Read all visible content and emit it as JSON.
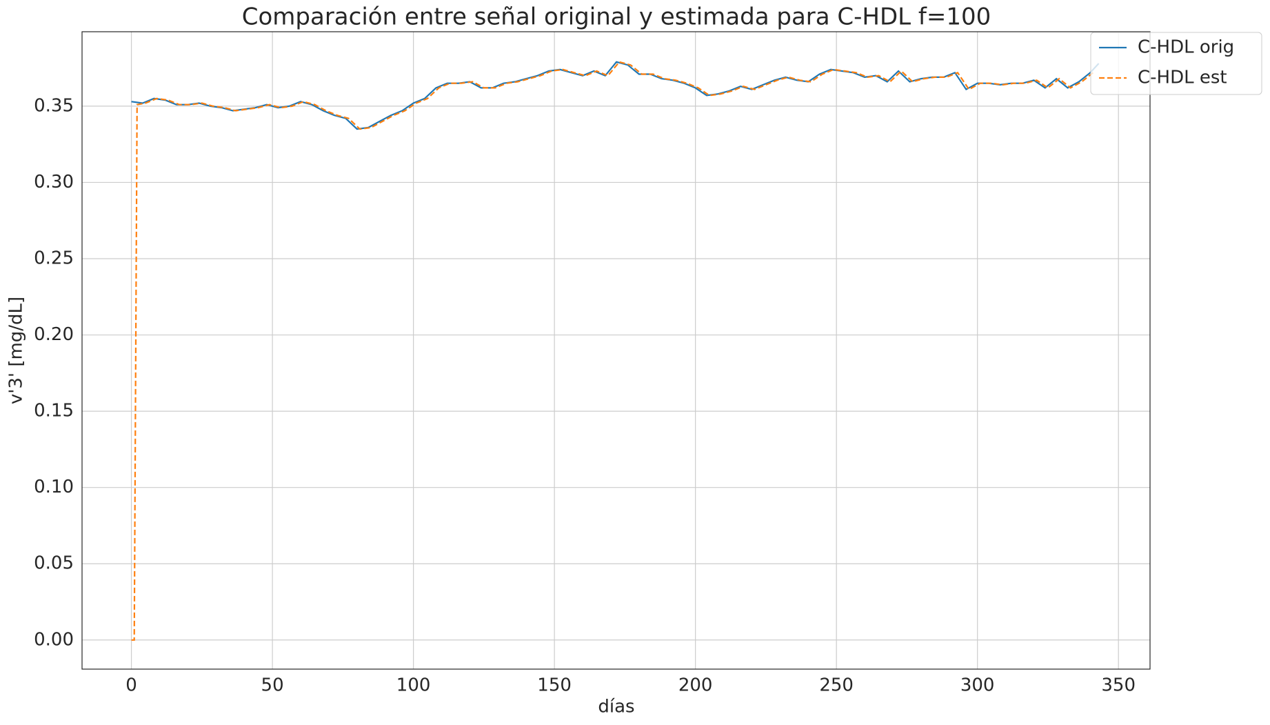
{
  "chart_data": {
    "type": "line",
    "title": "Comparación entre señal original y estimada para C-HDL f=100",
    "xlabel": "días",
    "ylabel": "v'3' [mg/dL]",
    "xlim": [
      -17.5,
      361.2
    ],
    "ylim": [
      -0.0191,
      0.3988
    ],
    "xticks": [
      0,
      50,
      100,
      150,
      200,
      250,
      300,
      350
    ],
    "yticks": [
      {
        "value": 0,
        "label": "0.00"
      },
      0.05,
      {
        "value": 0.1,
        "label": "0.10"
      },
      0.15,
      {
        "value": 0.2,
        "label": "0.20"
      },
      0.25,
      {
        "value": 0.3,
        "label": "0.30"
      },
      0.35
    ],
    "grid": true,
    "legend": "upper right",
    "series": [
      {
        "name": "C-HDL orig",
        "color": "#1f77b4",
        "dash": "solid",
        "x": [
          0,
          4,
          8,
          12,
          16,
          20,
          24,
          28,
          32,
          36,
          40,
          44,
          48,
          52,
          56,
          60,
          64,
          68,
          72,
          76,
          80,
          84,
          88,
          92,
          96,
          100,
          104,
          108,
          112,
          116,
          120,
          124,
          128,
          132,
          136,
          140,
          144,
          148,
          152,
          156,
          160,
          164,
          168,
          172,
          176,
          180,
          184,
          188,
          192,
          196,
          200,
          204,
          208,
          212,
          216,
          220,
          224,
          228,
          232,
          236,
          240,
          244,
          248,
          252,
          256,
          260,
          264,
          268,
          272,
          276,
          280,
          284,
          288,
          292,
          296,
          300,
          304,
          308,
          312,
          316,
          320,
          324,
          328,
          332,
          336,
          340,
          343
        ],
        "values": [
          0.353,
          0.352,
          0.355,
          0.354,
          0.351,
          0.351,
          0.352,
          0.35,
          0.349,
          0.347,
          0.348,
          0.349,
          0.351,
          0.349,
          0.35,
          0.353,
          0.351,
          0.347,
          0.344,
          0.342,
          0.335,
          0.336,
          0.34,
          0.344,
          0.347,
          0.352,
          0.355,
          0.362,
          0.365,
          0.365,
          0.366,
          0.362,
          0.362,
          0.365,
          0.366,
          0.368,
          0.37,
          0.373,
          0.374,
          0.372,
          0.37,
          0.373,
          0.37,
          0.379,
          0.377,
          0.371,
          0.371,
          0.368,
          0.367,
          0.365,
          0.362,
          0.357,
          0.358,
          0.36,
          0.363,
          0.361,
          0.364,
          0.367,
          0.369,
          0.367,
          0.366,
          0.371,
          0.374,
          0.373,
          0.372,
          0.369,
          0.37,
          0.366,
          0.373,
          0.366,
          0.368,
          0.369,
          0.369,
          0.372,
          0.361,
          0.365,
          0.365,
          0.364,
          0.365,
          0.365,
          0.367,
          0.362,
          0.368,
          0.362,
          0.366,
          0.372,
          0.378
        ]
      },
      {
        "name": "C-HDL est",
        "color": "#ff7f0e",
        "dash": "dashed",
        "x": [
          0,
          1,
          2,
          5,
          9,
          13,
          17,
          21,
          25,
          29,
          33,
          37,
          41,
          45,
          49,
          53,
          57,
          61,
          65,
          69,
          73,
          77,
          81,
          85,
          89,
          93,
          97,
          101,
          105,
          109,
          113,
          117,
          121,
          125,
          129,
          133,
          137,
          141,
          145,
          149,
          153,
          157,
          161,
          165,
          169,
          173,
          177,
          181,
          185,
          189,
          193,
          197,
          201,
          205,
          209,
          213,
          217,
          221,
          225,
          229,
          233,
          237,
          241,
          245,
          249,
          253,
          257,
          261,
          265,
          269,
          273,
          277,
          281,
          285,
          289,
          293,
          297,
          301,
          305,
          309,
          313,
          317,
          321,
          325,
          329,
          333,
          337,
          341
        ],
        "values": [
          0,
          0,
          0.351,
          0.352,
          0.355,
          0.354,
          0.351,
          0.351,
          0.352,
          0.35,
          0.349,
          0.347,
          0.348,
          0.349,
          0.351,
          0.349,
          0.35,
          0.353,
          0.351,
          0.347,
          0.344,
          0.342,
          0.335,
          0.336,
          0.34,
          0.344,
          0.347,
          0.352,
          0.355,
          0.362,
          0.365,
          0.365,
          0.366,
          0.362,
          0.362,
          0.365,
          0.366,
          0.368,
          0.37,
          0.373,
          0.374,
          0.372,
          0.37,
          0.373,
          0.37,
          0.379,
          0.377,
          0.371,
          0.371,
          0.368,
          0.367,
          0.365,
          0.362,
          0.357,
          0.358,
          0.36,
          0.363,
          0.361,
          0.364,
          0.367,
          0.369,
          0.367,
          0.366,
          0.371,
          0.374,
          0.373,
          0.372,
          0.369,
          0.37,
          0.366,
          0.373,
          0.366,
          0.368,
          0.369,
          0.369,
          0.372,
          0.361,
          0.365,
          0.365,
          0.364,
          0.365,
          0.365,
          0.367,
          0.362,
          0.368,
          0.362,
          0.366,
          0.372
        ]
      }
    ]
  }
}
